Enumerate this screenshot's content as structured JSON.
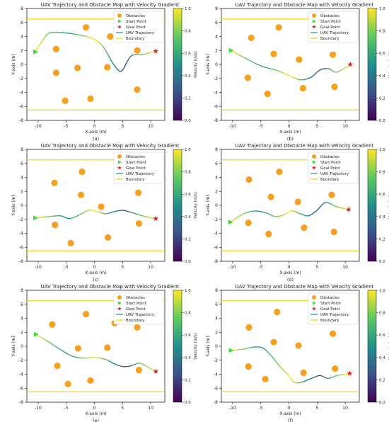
{
  "figure": {
    "panel_letters": [
      "(a)",
      "(b)",
      "(c)",
      "(d)",
      "(e)",
      "(f)"
    ]
  },
  "colors": {
    "obstacle": "#f5a020",
    "start": "#3ddc3d",
    "goal": "#e02020",
    "boundary": "#f0d000",
    "trajectory": [
      "#440154",
      "#3b528b",
      "#21918c",
      "#5ec962",
      "#fde725"
    ]
  },
  "chart_data": [
    {
      "type": "scatter",
      "title": "UAV Trajectory and Obstacle Map with Velocity Gradient",
      "xlabel": "X-axis (m)",
      "ylabel": "Y-axis (m)",
      "xlim": [
        -12,
        12.5
      ],
      "ylim": [
        -8,
        8
      ],
      "xticks": [
        -10,
        -5,
        0,
        5,
        10
      ],
      "yticks": [
        -8,
        -6,
        -4,
        -2,
        0,
        2,
        4,
        6,
        8
      ],
      "legend": [
        "Obstacles",
        "Start Point",
        "Goal Point",
        "UAV Trajectory",
        "Boundary"
      ],
      "legend_position": "top-right",
      "colorbar": {
        "label": "Velocity (m/s)",
        "range": [
          0,
          1
        ],
        "ticks": [
          0.0,
          0.2,
          0.4,
          0.6,
          0.8,
          1.0
        ]
      },
      "boundary_y": [
        6.5,
        -6.5
      ],
      "start": [
        -10.5,
        1.8
      ],
      "goal": [
        10.9,
        1.9
      ],
      "obstacles": [
        [
          -6.8,
          2.2
        ],
        [
          -1.5,
          5.3
        ],
        [
          -6.8,
          -1.2
        ],
        [
          -3,
          -0.5
        ],
        [
          -5.2,
          -5.2
        ],
        [
          2.8,
          4
        ],
        [
          2.3,
          -0.4
        ],
        [
          7.6,
          2
        ],
        [
          -0.7,
          -4.9
        ],
        [
          7.6,
          -3.6
        ]
      ],
      "trajectory": [
        [
          -10.5,
          1.8
        ],
        [
          -8.5,
          4.2
        ],
        [
          -7,
          4.6
        ],
        [
          -4,
          4.4
        ],
        [
          -2,
          4.1
        ],
        [
          0,
          3.6
        ],
        [
          1.6,
          2.5
        ],
        [
          3,
          0.5
        ],
        [
          4.2,
          -0.8
        ],
        [
          5,
          -0.8
        ],
        [
          6.5,
          1.2
        ],
        [
          8.5,
          1.4
        ],
        [
          10.9,
          1.9
        ]
      ]
    },
    {
      "type": "scatter",
      "title": "UAV Trajectory and Obstacle Map with Velocity Gradient",
      "xlabel": "X-axis (m)",
      "ylabel": "Y-axis (m)",
      "xlim": [
        -12,
        12.5
      ],
      "ylim": [
        -8,
        8
      ],
      "xticks": [
        -10,
        -5,
        0,
        5,
        10
      ],
      "yticks": [
        -8,
        -6,
        -4,
        -2,
        0,
        2,
        4,
        6,
        8
      ],
      "legend": [
        "Obstacles",
        "Start Point",
        "Goal Point",
        "UAV Trajectory",
        "Boundary"
      ],
      "legend_position": "top-right",
      "colorbar": {
        "label": "Velocity (m/s)",
        "range": [
          0,
          1
        ],
        "ticks": [
          0.0,
          0.2,
          0.4,
          0.6,
          0.8,
          1.0
        ]
      },
      "boundary_y": [
        6.5,
        -6.5
      ],
      "start": [
        -10.3,
        2
      ],
      "goal": [
        10.9,
        0
      ],
      "obstacles": [
        [
          -6.7,
          3.8
        ],
        [
          -1.8,
          5.3
        ],
        [
          -7.3,
          -1.9
        ],
        [
          -2.7,
          1.5
        ],
        [
          -3.8,
          -4.2
        ],
        [
          4.2,
          3.9
        ],
        [
          1.8,
          0.7
        ],
        [
          7.8,
          1.4
        ],
        [
          2.5,
          -3.4
        ],
        [
          8.1,
          -3.2
        ]
      ],
      "trajectory": [
        [
          -10.3,
          2
        ],
        [
          -8,
          1
        ],
        [
          -5,
          -0.2
        ],
        [
          -2,
          -0.9
        ],
        [
          0,
          -1.6
        ],
        [
          1.5,
          -2.1
        ],
        [
          2.5,
          -2.2
        ],
        [
          4,
          -1.8
        ],
        [
          5.5,
          -0.8
        ],
        [
          7,
          -0.6
        ],
        [
          8.5,
          -1.1
        ],
        [
          10.9,
          0
        ]
      ]
    },
    {
      "type": "scatter",
      "title": "UAV Trajectory and Obstacle Map with Velocity Gradient",
      "xlabel": "X-axis (m)",
      "ylabel": "Y-axis (m)",
      "xlim": [
        -12,
        12.5
      ],
      "ylim": [
        -8,
        8
      ],
      "xticks": [
        -10,
        -5,
        0,
        5,
        10
      ],
      "yticks": [
        -8,
        -6,
        -4,
        -2,
        0,
        2,
        4,
        6,
        8
      ],
      "legend": [
        "Obstacles",
        "Start Point",
        "Goal Point",
        "UAV Trajectory",
        "Boundary"
      ],
      "legend_position": "top-right",
      "colorbar": {
        "label": "Velocity (m/s)",
        "range": [
          0,
          1
        ],
        "ticks": [
          0.0,
          0.2,
          0.4,
          0.6,
          0.8,
          1.0
        ]
      },
      "boundary_y": [
        6.5,
        -6.5
      ],
      "start": [
        -10.5,
        -1.8
      ],
      "goal": [
        10.9,
        -1.9
      ],
      "obstacles": [
        [
          -7.1,
          3.2
        ],
        [
          -2.2,
          4.8
        ],
        [
          -2.4,
          1.5
        ],
        [
          -7,
          -2.8
        ],
        [
          -4.2,
          -5.4
        ],
        [
          4.2,
          4.3
        ],
        [
          1.2,
          -0.2
        ],
        [
          7.8,
          1.8
        ],
        [
          2.4,
          -4.6
        ],
        [
          7.9,
          -2.6
        ]
      ],
      "trajectory": [
        [
          -10.5,
          -1.8
        ],
        [
          -8,
          -1.6
        ],
        [
          -6,
          -1.5
        ],
        [
          -4.5,
          -1.9
        ],
        [
          -3,
          -1.5
        ],
        [
          -1,
          -0.7
        ],
        [
          0.5,
          -0.9
        ],
        [
          2,
          -1.2
        ],
        [
          3.5,
          -0.9
        ],
        [
          5,
          -0.7
        ],
        [
          6.5,
          -1
        ],
        [
          8.5,
          -1.5
        ],
        [
          10.9,
          -1.9
        ]
      ]
    },
    {
      "type": "scatter",
      "title": "UAV Trajectory and Obstacle Map with Velocity Gradient",
      "xlabel": "X-axis (m)",
      "ylabel": "Y-axis (m)",
      "xlim": [
        -12,
        12.5
      ],
      "ylim": [
        -8,
        8
      ],
      "xticks": [
        -10,
        -5,
        0,
        5,
        10
      ],
      "yticks": [
        -8,
        -6,
        -4,
        -2,
        0,
        2,
        4,
        6,
        8
      ],
      "legend": [
        "Obstacles",
        "Start Point",
        "Goal Point",
        "UAV Trajectory",
        "Boundary"
      ],
      "legend_position": "top-right",
      "colorbar": {
        "label": "Velocity (m/s)",
        "range": [
          0,
          1
        ],
        "ticks": [
          0.0,
          0.2,
          0.4,
          0.6,
          0.8,
          1.0
        ]
      },
      "boundary_y": [
        6.5,
        -6.5
      ],
      "start": [
        -10.4,
        -2.4
      ],
      "goal": [
        10.6,
        -0.6
      ],
      "obstacles": [
        [
          -7.1,
          3.7
        ],
        [
          -1.7,
          4.8
        ],
        [
          -3.2,
          1.2
        ],
        [
          -7.2,
          -2.5
        ],
        [
          -3.6,
          -4.1
        ],
        [
          4.2,
          4.2
        ],
        [
          1.6,
          0.5
        ],
        [
          7.6,
          1.5
        ],
        [
          2.7,
          -3.2
        ],
        [
          8,
          -3.8
        ]
      ],
      "trajectory": [
        [
          -10.4,
          -2.4
        ],
        [
          -8,
          -1.2
        ],
        [
          -6,
          -0.8
        ],
        [
          -4,
          -1.1
        ],
        [
          -2.5,
          -1.6
        ],
        [
          -1,
          -1.4
        ],
        [
          0.5,
          -0.8
        ],
        [
          2,
          -1.2
        ],
        [
          3.5,
          -1.5
        ],
        [
          5,
          -0.7
        ],
        [
          6.5,
          0.4
        ],
        [
          8.5,
          -0.2
        ],
        [
          10.6,
          -0.6
        ]
      ]
    },
    {
      "type": "scatter",
      "title": "UAV Trajectory and Obstacle Map with Velocity Gradient",
      "xlabel": "X-axis (m)",
      "ylabel": "Y-axis (m)",
      "xlim": [
        -12,
        12.5
      ],
      "ylim": [
        -8,
        8
      ],
      "xticks": [
        -10,
        -5,
        0,
        5,
        10
      ],
      "yticks": [
        -8,
        -6,
        -4,
        -2,
        0,
        2,
        4,
        6,
        8
      ],
      "legend": [
        "Obstacles",
        "Start Point",
        "Goal Point",
        "UAV Trajectory",
        "Boundary"
      ],
      "legend_position": "top-right",
      "colorbar": {
        "label": "Velocity (m/s)",
        "range": [
          0,
          1
        ],
        "ticks": [
          0.0,
          0.2,
          0.4,
          0.6,
          0.8,
          1.0
        ]
      },
      "boundary_y": [
        6.5,
        -6.5
      ],
      "start": [
        -10.4,
        1.7
      ],
      "goal": [
        10.9,
        -3.6
      ],
      "obstacles": [
        [
          -7.5,
          3.1
        ],
        [
          -1.5,
          4.6
        ],
        [
          -6.6,
          -2.8
        ],
        [
          -2.9,
          -0.3
        ],
        [
          -4.7,
          -5.4
        ],
        [
          3.6,
          3.3
        ],
        [
          2.3,
          -0.2
        ],
        [
          7.6,
          2.7
        ],
        [
          -0.7,
          -4.9
        ],
        [
          7.9,
          -3.4
        ]
      ],
      "trajectory": [
        [
          -10.4,
          1.7
        ],
        [
          -8.5,
          0.8
        ],
        [
          -6,
          -0.5
        ],
        [
          -4,
          -1.4
        ],
        [
          -2,
          -1.7
        ],
        [
          0,
          -1.6
        ],
        [
          2,
          -1.9
        ],
        [
          3.5,
          -2.5
        ],
        [
          5,
          -2.9
        ],
        [
          6.5,
          -2.8
        ],
        [
          8,
          -2.4
        ],
        [
          9.5,
          -3
        ],
        [
          10.9,
          -3.6
        ]
      ]
    },
    {
      "type": "scatter",
      "title": "UAV Trajectory and Obstacle Map with Velocity Gradient",
      "xlabel": "X-axis (m)",
      "ylabel": "Y-axis (m)",
      "xlim": [
        -12,
        12.5
      ],
      "ylim": [
        -8,
        8
      ],
      "xticks": [
        -10,
        -5,
        0,
        5,
        10
      ],
      "yticks": [
        -8,
        -6,
        -4,
        -2,
        0,
        2,
        4,
        6,
        8
      ],
      "legend": [
        "Obstacles",
        "Start Point",
        "Goal Point",
        "UAV Trajectory",
        "Boundary"
      ],
      "legend_position": "top-right",
      "colorbar": {
        "label": "Velocity (m/s)",
        "range": [
          0,
          1
        ],
        "ticks": [
          0.0,
          0.2,
          0.4,
          0.6,
          0.8,
          1.0
        ]
      },
      "boundary_y": [
        6.5,
        -6.5
      ],
      "start": [
        -10.3,
        -0.6
      ],
      "goal": [
        10.8,
        -3.9
      ],
      "obstacles": [
        [
          -7.1,
          2.7
        ],
        [
          -2.1,
          4.9
        ],
        [
          -2.7,
          0.6
        ],
        [
          -7.2,
          -2.9
        ],
        [
          -4.2,
          -4.7
        ],
        [
          4.2,
          4.6
        ],
        [
          1.7,
          0.1
        ],
        [
          7.8,
          1.8
        ],
        [
          2.6,
          -3.8
        ],
        [
          8.2,
          -3.2
        ]
      ],
      "trajectory": [
        [
          -10.3,
          -0.6
        ],
        [
          -8,
          -0.4
        ],
        [
          -6,
          -0.1
        ],
        [
          -4.5,
          -0.3
        ],
        [
          -3,
          -1.5
        ],
        [
          -1.5,
          -3
        ],
        [
          0,
          -4.2
        ],
        [
          0.8,
          -5.1
        ],
        [
          2,
          -5.2
        ],
        [
          4,
          -4.6
        ],
        [
          5.5,
          -4.2
        ],
        [
          7,
          -4.6
        ],
        [
          8.5,
          -4.2
        ],
        [
          10.8,
          -3.9
        ]
      ]
    }
  ]
}
